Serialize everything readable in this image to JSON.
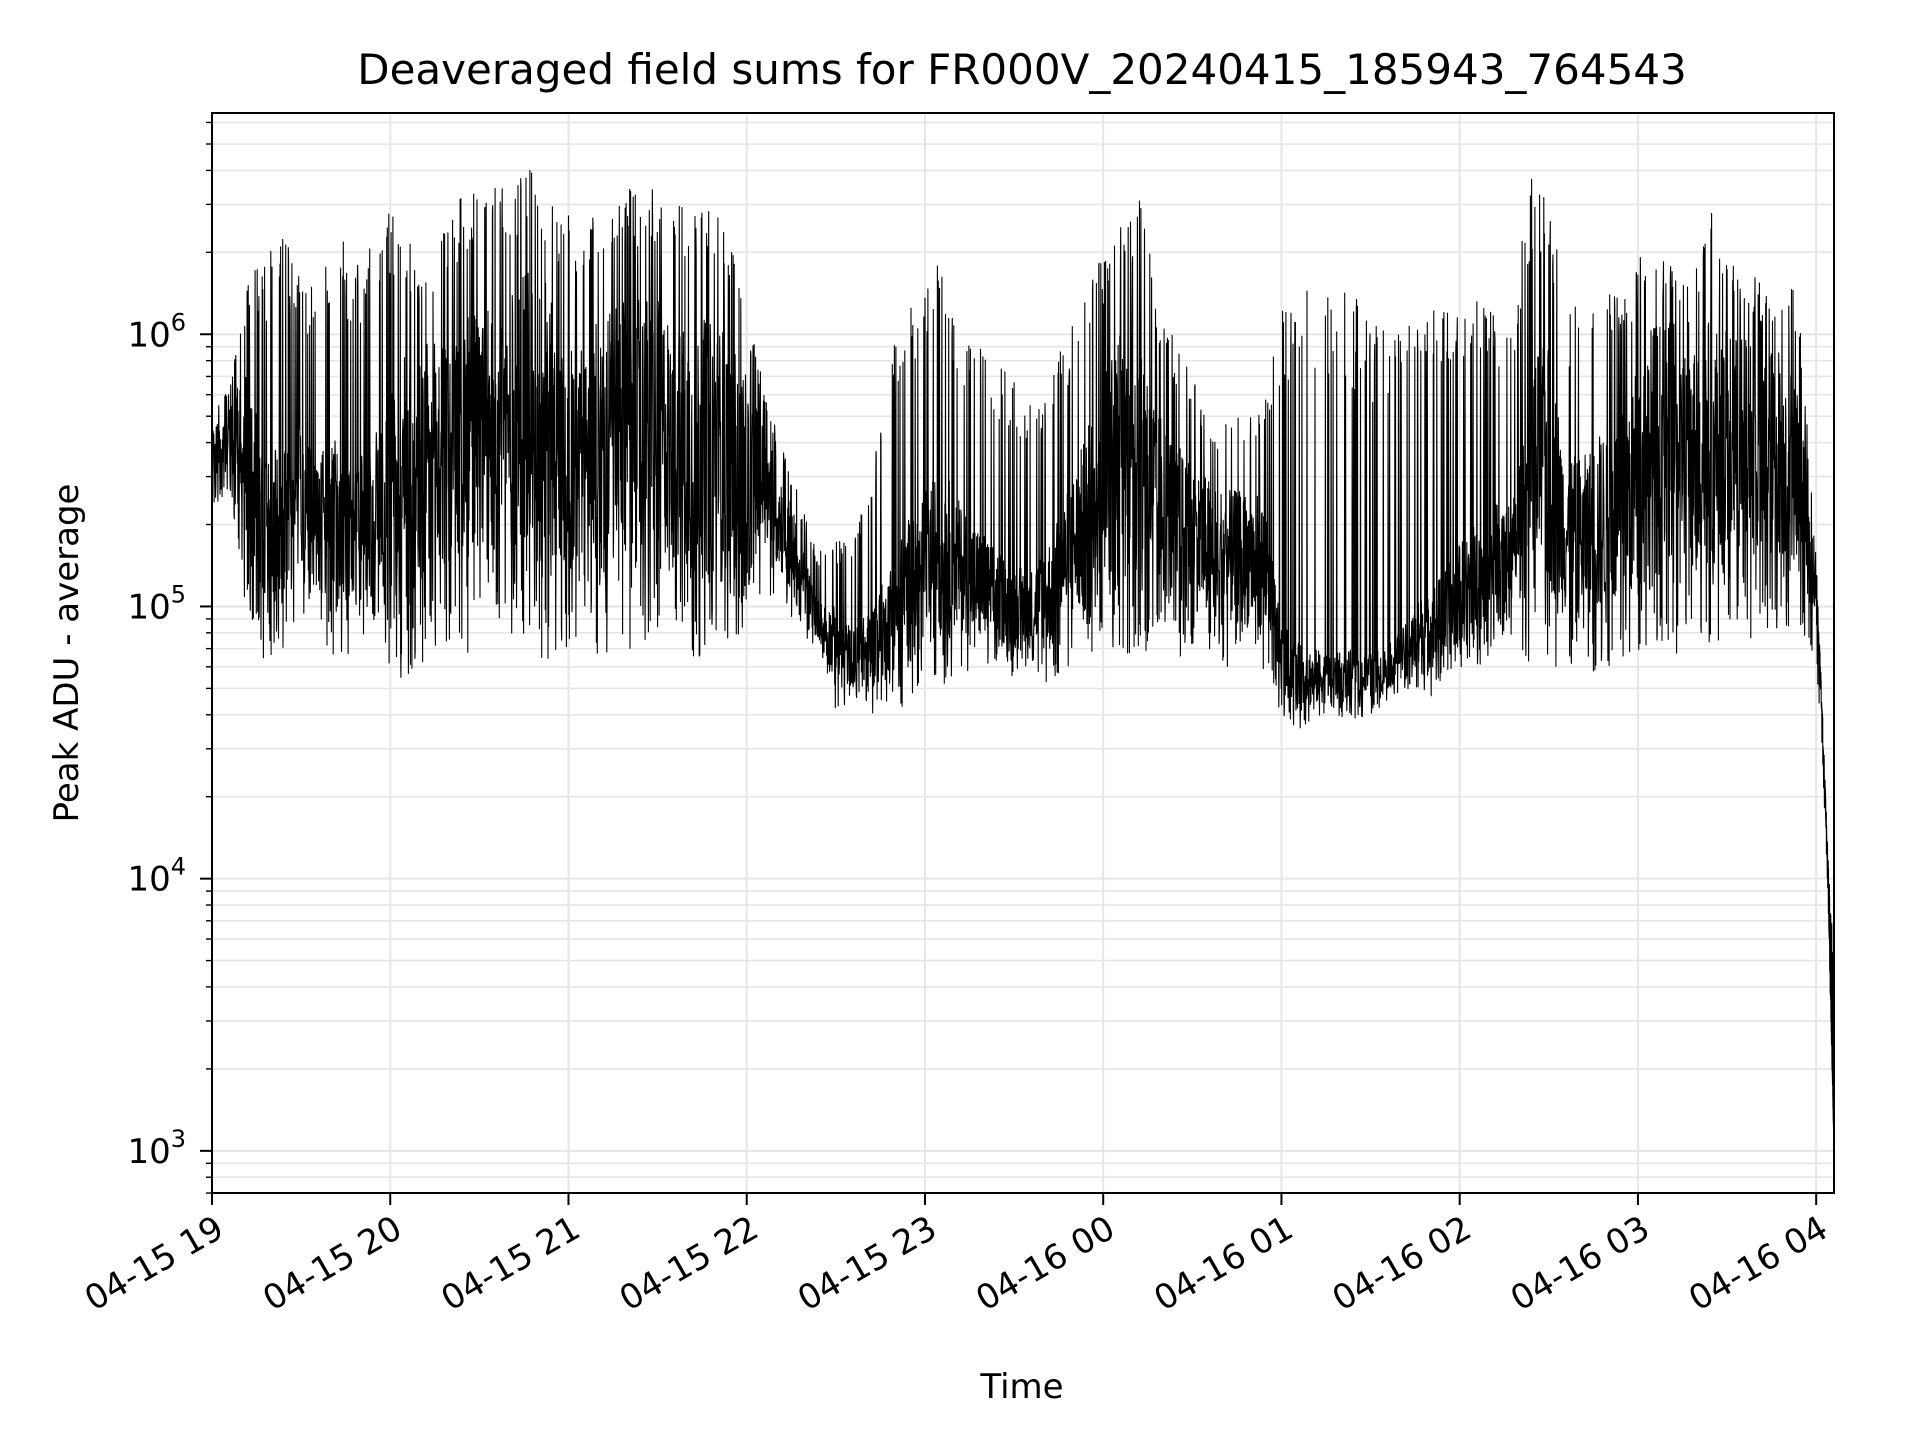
{
  "chart_data": {
    "type": "line",
    "title": "Deaveraged field sums for FR000V_20240415_185943_764543",
    "xlabel": "Time",
    "ylabel": "Peak ADU - average",
    "yscale": "log",
    "ylim": [
      700,
      6500000
    ],
    "xlim": [
      "2024-04-15T19:00",
      "2024-04-16T04:06"
    ],
    "x_ticks": [
      {
        "value": "2024-04-15T19:00",
        "label": "04-15 19"
      },
      {
        "value": "2024-04-15T20:00",
        "label": "04-15 20"
      },
      {
        "value": "2024-04-15T21:00",
        "label": "04-15 21"
      },
      {
        "value": "2024-04-15T22:00",
        "label": "04-15 22"
      },
      {
        "value": "2024-04-15T23:00",
        "label": "04-15 23"
      },
      {
        "value": "2024-04-16T00:00",
        "label": "04-16 00"
      },
      {
        "value": "2024-04-16T01:00",
        "label": "04-16 01"
      },
      {
        "value": "2024-04-16T02:00",
        "label": "04-16 02"
      },
      {
        "value": "2024-04-16T03:00",
        "label": "04-16 03"
      },
      {
        "value": "2024-04-16T04:00",
        "label": "04-16 04"
      }
    ],
    "y_ticks": [
      {
        "value": 1000,
        "base": "10",
        "exp": "3"
      },
      {
        "value": 10000,
        "base": "10",
        "exp": "4"
      },
      {
        "value": 100000,
        "base": "10",
        "exp": "5"
      },
      {
        "value": 1000000,
        "base": "10",
        "exp": "6"
      }
    ],
    "grid": true,
    "line_color": "#000000",
    "grid_color": "#e6e6e6",
    "series": [
      {
        "x": [
          "2024-04-15T19:00",
          "2024-04-15T19:06",
          "2024-04-15T19:12",
          "2024-04-15T19:18",
          "2024-04-15T19:24",
          "2024-04-15T19:30",
          "2024-04-15T19:36",
          "2024-04-15T19:42",
          "2024-04-15T19:48",
          "2024-04-15T19:54",
          "2024-04-15T20:00",
          "2024-04-15T20:06",
          "2024-04-15T20:12",
          "2024-04-15T20:18",
          "2024-04-15T20:24",
          "2024-04-15T20:30",
          "2024-04-15T20:36",
          "2024-04-15T20:42",
          "2024-04-15T20:48",
          "2024-04-15T20:54",
          "2024-04-15T21:00",
          "2024-04-15T21:06",
          "2024-04-15T21:12",
          "2024-04-15T21:18",
          "2024-04-15T21:24",
          "2024-04-15T21:30",
          "2024-04-15T21:36",
          "2024-04-15T21:42",
          "2024-04-15T21:48",
          "2024-04-15T21:54",
          "2024-04-15T22:00",
          "2024-04-15T22:06",
          "2024-04-15T22:12",
          "2024-04-15T22:18",
          "2024-04-15T22:24",
          "2024-04-15T22:30",
          "2024-04-15T22:36",
          "2024-04-15T22:42",
          "2024-04-15T22:48",
          "2024-04-15T22:54",
          "2024-04-15T23:00",
          "2024-04-15T23:06",
          "2024-04-15T23:12",
          "2024-04-15T23:18",
          "2024-04-15T23:24",
          "2024-04-15T23:30",
          "2024-04-15T23:36",
          "2024-04-15T23:42",
          "2024-04-15T23:48",
          "2024-04-15T23:54",
          "2024-04-16T00:00",
          "2024-04-16T00:06",
          "2024-04-16T00:12",
          "2024-04-16T00:18",
          "2024-04-16T00:24",
          "2024-04-16T00:30",
          "2024-04-16T00:36",
          "2024-04-16T00:42",
          "2024-04-16T00:48",
          "2024-04-16T00:54",
          "2024-04-16T01:00",
          "2024-04-16T01:06",
          "2024-04-16T01:12",
          "2024-04-16T01:18",
          "2024-04-16T01:24",
          "2024-04-16T01:30",
          "2024-04-16T01:36",
          "2024-04-16T01:42",
          "2024-04-16T01:48",
          "2024-04-16T01:54",
          "2024-04-16T02:00",
          "2024-04-16T02:06",
          "2024-04-16T02:12",
          "2024-04-16T02:18",
          "2024-04-16T02:24",
          "2024-04-16T02:30",
          "2024-04-16T02:36",
          "2024-04-16T02:42",
          "2024-04-16T02:48",
          "2024-04-16T02:54",
          "2024-04-16T03:00",
          "2024-04-16T03:06",
          "2024-04-16T03:12",
          "2024-04-16T03:18",
          "2024-04-16T03:24",
          "2024-04-16T03:30",
          "2024-04-16T03:36",
          "2024-04-16T03:42",
          "2024-04-16T03:48",
          "2024-04-16T03:54",
          "2024-04-16T04:00",
          "2024-04-16T04:02",
          "2024-04-16T04:04",
          "2024-04-16T04:06"
        ],
        "low": [
          240000,
          250000,
          90000,
          60000,
          70000,
          90000,
          80000,
          60000,
          70000,
          80000,
          60000,
          50000,
          60000,
          70000,
          60000,
          80000,
          90000,
          70000,
          60000,
          60000,
          70000,
          60000,
          60000,
          70000,
          70000,
          80000,
          80000,
          60000,
          70000,
          60000,
          80000,
          120000,
          90000,
          80000,
          70000,
          40000,
          45000,
          40000,
          45000,
          40000,
          60000,
          50000,
          60000,
          55000,
          60000,
          55000,
          60000,
          50000,
          60000,
          60000,
          70000,
          70000,
          60000,
          70000,
          60000,
          70000,
          60000,
          60000,
          60000,
          55000,
          40000,
          35000,
          38000,
          40000,
          38000,
          40000,
          45000,
          50000,
          45000,
          50000,
          55000,
          60000,
          70000,
          80000,
          60000,
          60000,
          60000,
          60000,
          55000,
          60000,
          60000,
          60000,
          65000,
          70000,
          70000,
          80000,
          80000,
          70000,
          80000,
          90000,
          60000,
          30000,
          8000,
          1000
        ],
        "high": [
          500000,
          650000,
          1600000,
          2000000,
          2400000,
          1600000,
          1500000,
          2500000,
          1800000,
          2300000,
          2900000,
          2200000,
          1900000,
          2600000,
          3300000,
          3500000,
          3500000,
          3600000,
          4300000,
          3300000,
          2800000,
          2500000,
          3500000,
          3400000,
          3500000,
          3500000,
          3000000,
          3300000,
          2800000,
          2500000,
          1400000,
          600000,
          400000,
          250000,
          160000,
          180000,
          200000,
          300000,
          900000,
          1200000,
          1800000,
          2000000,
          1000000,
          1000000,
          800000,
          700000,
          600000,
          700000,
          1000000,
          1500000,
          2000000,
          2600000,
          3200000,
          1500000,
          1000000,
          700000,
          500000,
          500000,
          500000,
          600000,
          1500000,
          1500000,
          1500000,
          1500000,
          1400000,
          1200000,
          1100000,
          1200000,
          1500000,
          1400000,
          1500000,
          1400000,
          1200000,
          1300000,
          3800000,
          3400000,
          1200000,
          1400000,
          1500000,
          1500000,
          1900000,
          2200000,
          2000000,
          1500000,
          3600000,
          2000000,
          1700000,
          1600000,
          1600000,
          1400000,
          150000,
          45000,
          12000,
          5000
        ],
        "typical": [
          350000,
          420000,
          320000,
          180000,
          200000,
          250000,
          200000,
          200000,
          180000,
          220000,
          300000,
          300000,
          320000,
          350000,
          380000,
          420000,
          450000,
          450000,
          500000,
          420000,
          350000,
          320000,
          400000,
          420000,
          450000,
          450000,
          420000,
          380000,
          380000,
          350000,
          300000,
          280000,
          200000,
          130000,
          90000,
          70000,
          65000,
          70000,
          90000,
          110000,
          150000,
          160000,
          140000,
          120000,
          110000,
          100000,
          100000,
          110000,
          150000,
          200000,
          300000,
          380000,
          400000,
          250000,
          200000,
          180000,
          160000,
          150000,
          150000,
          140000,
          65000,
          55000,
          55000,
          55000,
          55000,
          55000,
          60000,
          70000,
          80000,
          90000,
          110000,
          130000,
          150000,
          160000,
          300000,
          320000,
          180000,
          180000,
          200000,
          220000,
          300000,
          380000,
          400000,
          350000,
          400000,
          380000,
          380000,
          350000,
          380000,
          320000,
          110000,
          40000,
          10000,
          1000
        ]
      }
    ]
  }
}
